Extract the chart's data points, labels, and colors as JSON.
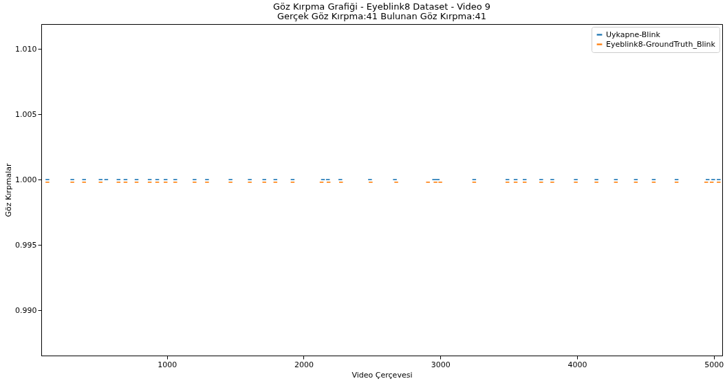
{
  "chart_data": {
    "type": "scatter",
    "title": "Göz Kırpma Grafiği - Eyeblink8 Dataset - Video 9",
    "subtitle": "Gerçek Göz Kırpma:41 Bulunan Göz Kırpma:41",
    "xlabel": "Video Çerçevesi",
    "ylabel": "Göz Kırpmalar",
    "xlim": [
      81,
      5061
    ],
    "xticks": [
      1000,
      2000,
      3000,
      4000,
      5000
    ],
    "ylim": [
      0.98654,
      1.0119
    ],
    "yticks": [
      {
        "value": 0.99,
        "label": "0.990"
      },
      {
        "value": 0.995,
        "label": "0.995"
      },
      {
        "value": 1,
        "label": "1.000"
      },
      {
        "value": 1.005,
        "label": "1.005"
      },
      {
        "value": 1.01,
        "label": "1.010"
      }
    ],
    "legend": "top right",
    "grid": false,
    "series": [
      {
        "name": "Uykapne-Blink",
        "color": "#1f77b4",
        "x": [
          126,
          308,
          394,
          515,
          556,
          646,
          697,
          778,
          874,
          929,
          990,
          1061,
          1202,
          1293,
          1465,
          1606,
          1712,
          1793,
          1919,
          2141,
          2177,
          2268,
          2485,
          2667,
          2954,
          2980,
          3247,
          3490,
          3550,
          3616,
          3737,
          3818,
          3990,
          4141,
          4283,
          4429,
          4560,
          4727,
          4954,
          4995,
          5035
        ],
        "values": [
          1,
          1,
          1,
          1,
          1,
          1,
          1,
          1,
          1,
          1,
          1,
          1,
          1,
          1,
          1,
          1,
          1,
          1,
          1,
          1,
          1,
          1,
          1,
          1,
          1,
          1,
          1,
          1,
          1,
          1,
          1,
          1,
          1,
          1,
          1,
          1,
          1,
          1,
          1,
          1,
          1
        ]
      },
      {
        "name": "Eyeblink8-GroundTruth_Blink",
        "color": "#ff7f0e",
        "x": [
          126,
          308,
          394,
          515,
          646,
          697,
          778,
          874,
          929,
          990,
          1061,
          1202,
          1293,
          1465,
          1606,
          1712,
          1793,
          1919,
          2131,
          2182,
          2273,
          2490,
          2677,
          2909,
          2964,
          2999,
          3247,
          3490,
          3550,
          3616,
          3737,
          3818,
          3990,
          4141,
          4283,
          4429,
          4560,
          4727,
          4944,
          4984,
          5035
        ],
        "values": [
          0.9998,
          0.9998,
          0.9998,
          0.9998,
          0.9998,
          0.9998,
          0.9998,
          0.9998,
          0.9998,
          0.9998,
          0.9998,
          0.9998,
          0.9998,
          0.9998,
          0.9998,
          0.9998,
          0.9998,
          0.9998,
          0.9998,
          0.9998,
          0.9998,
          0.9998,
          0.9998,
          0.9998,
          0.9998,
          0.9998,
          0.9998,
          0.9998,
          0.9998,
          0.9998,
          0.9998,
          0.9998,
          0.9998,
          0.9998,
          0.9998,
          0.9998,
          0.9998,
          0.9998,
          0.9998,
          0.9998,
          0.9998
        ]
      }
    ]
  }
}
